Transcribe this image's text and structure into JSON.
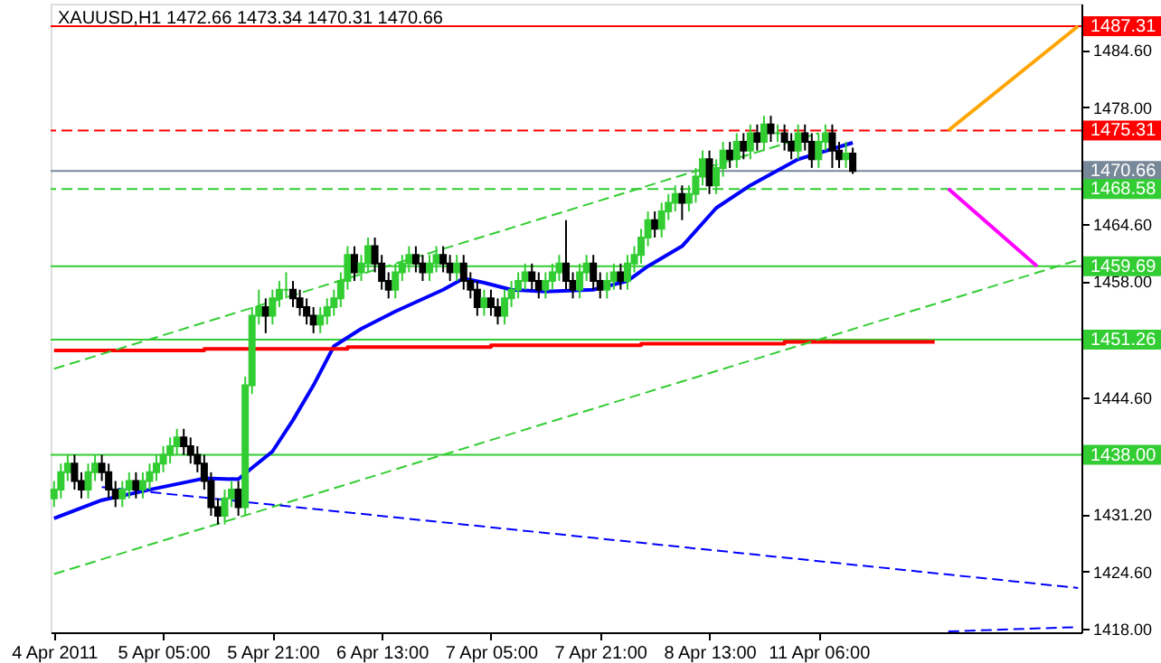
{
  "chart_data": {
    "type": "candlestick",
    "title": "XAUUSD,H1  1472.66 1473.34 1470.31 1470.66",
    "categories": [
      "4 Apr 2011",
      null,
      null,
      null,
      null,
      null,
      null,
      null,
      null,
      null,
      null,
      null,
      null,
      null,
      null,
      null,
      "5 Apr 05:00",
      null,
      null,
      null,
      null,
      null,
      null,
      null,
      null,
      null,
      null,
      null,
      null,
      null,
      null,
      null,
      "5 Apr 21:00",
      null,
      null,
      null,
      null,
      null,
      null,
      null,
      null,
      null,
      null,
      null,
      null,
      null,
      null,
      null,
      "6 Apr 13:00",
      null,
      null,
      null,
      null,
      null,
      null,
      null,
      null,
      null,
      null,
      null,
      null,
      null,
      null,
      null,
      "7 Apr 05:00",
      null,
      null,
      null,
      null,
      null,
      null,
      null,
      null,
      null,
      null,
      null,
      null,
      null,
      null,
      null,
      "7 Apr 21:00",
      null,
      null,
      null,
      null,
      null,
      null,
      null,
      null,
      null,
      null,
      null,
      null,
      null,
      null,
      null,
      "8 Apr 13:00",
      null,
      null,
      null,
      null,
      null,
      null,
      null,
      null,
      null,
      null,
      null,
      null,
      null,
      null,
      null,
      "11 Apr 06:00",
      null,
      null,
      null,
      null,
      null,
      null,
      null,
      null,
      null,
      null,
      null,
      null,
      null,
      null,
      null,
      null,
      null,
      null,
      null,
      null,
      null,
      null,
      null,
      null,
      null,
      null,
      null,
      null,
      null,
      null,
      null,
      null,
      null,
      null,
      null,
      null,
      null,
      null
    ],
    "ohlc": [
      [
        1433,
        1435,
        1432,
        1434
      ],
      [
        1434,
        1437,
        1433,
        1436
      ],
      [
        1436,
        1438,
        1435,
        1437
      ],
      [
        1437,
        1438,
        1434,
        1435
      ],
      [
        1435,
        1436,
        1433,
        1434
      ],
      [
        1434,
        1437,
        1433,
        1436
      ],
      [
        1436,
        1438,
        1435,
        1437
      ],
      [
        1437,
        1438,
        1435,
        1436
      ],
      [
        1436,
        1437,
        1433,
        1434
      ],
      [
        1434,
        1435,
        1432,
        1433
      ],
      [
        1433,
        1435,
        1432,
        1434
      ],
      [
        1434,
        1436,
        1433,
        1435
      ],
      [
        1435,
        1436,
        1433,
        1434
      ],
      [
        1434,
        1436,
        1433,
        1435
      ],
      [
        1435,
        1437,
        1434,
        1436
      ],
      [
        1436,
        1438,
        1435,
        1437
      ],
      [
        1437,
        1439,
        1436,
        1438
      ],
      [
        1438,
        1440,
        1437,
        1439
      ],
      [
        1439,
        1441,
        1438,
        1440
      ],
      [
        1440,
        1441,
        1438,
        1439
      ],
      [
        1439,
        1440,
        1437,
        1438
      ],
      [
        1438,
        1439,
        1436,
        1437
      ],
      [
        1437,
        1438,
        1434,
        1435
      ],
      [
        1435,
        1436,
        1431,
        1432
      ],
      [
        1432,
        1433,
        1430,
        1431
      ],
      [
        1431,
        1434,
        1430,
        1433
      ],
      [
        1433,
        1435,
        1432,
        1434
      ],
      [
        1434,
        1435,
        1431,
        1432
      ],
      [
        1432,
        1447,
        1431,
        1446
      ],
      [
        1446,
        1455,
        1445,
        1454
      ],
      [
        1454,
        1457,
        1453,
        1455
      ],
      [
        1455,
        1456,
        1452,
        1454
      ],
      [
        1454,
        1457,
        1453,
        1456
      ],
      [
        1456,
        1458,
        1455,
        1457
      ],
      [
        1457,
        1459,
        1456,
        1457
      ],
      [
        1457,
        1458,
        1455,
        1456
      ],
      [
        1456,
        1457,
        1454,
        1455
      ],
      [
        1455,
        1456,
        1453,
        1454
      ],
      [
        1454,
        1455,
        1452,
        1453
      ],
      [
        1453,
        1455,
        1452,
        1454
      ],
      [
        1454,
        1456,
        1453,
        1455
      ],
      [
        1455,
        1457,
        1454,
        1456
      ],
      [
        1456,
        1459,
        1455,
        1458
      ],
      [
        1458,
        1462,
        1457,
        1461
      ],
      [
        1461,
        1462,
        1458,
        1459
      ],
      [
        1459,
        1461,
        1458,
        1460
      ],
      [
        1460,
        1463,
        1459,
        1462
      ],
      [
        1462,
        1463,
        1459,
        1460
      ],
      [
        1460,
        1461,
        1457,
        1458
      ],
      [
        1458,
        1459,
        1456,
        1457
      ],
      [
        1457,
        1460,
        1456,
        1459
      ],
      [
        1459,
        1461,
        1458,
        1460
      ],
      [
        1460,
        1462,
        1459,
        1461
      ],
      [
        1461,
        1462,
        1459,
        1460
      ],
      [
        1460,
        1461,
        1458,
        1459
      ],
      [
        1459,
        1461,
        1458,
        1460
      ],
      [
        1460,
        1462,
        1459,
        1461
      ],
      [
        1461,
        1462,
        1459,
        1460
      ],
      [
        1460,
        1461,
        1458,
        1459
      ],
      [
        1459,
        1461,
        1458,
        1460
      ],
      [
        1460,
        1461,
        1457,
        1458
      ],
      [
        1458,
        1459,
        1456,
        1457
      ],
      [
        1457,
        1458,
        1454,
        1455
      ],
      [
        1455,
        1457,
        1454,
        1456
      ],
      [
        1456,
        1457,
        1454,
        1455
      ],
      [
        1455,
        1456,
        1453,
        1454
      ],
      [
        1454,
        1457,
        1453,
        1456
      ],
      [
        1456,
        1458,
        1455,
        1457
      ],
      [
        1457,
        1459,
        1456,
        1458
      ],
      [
        1458,
        1460,
        1457,
        1459
      ],
      [
        1459,
        1460,
        1457,
        1458
      ],
      [
        1458,
        1459,
        1456,
        1457
      ],
      [
        1457,
        1459,
        1456,
        1458
      ],
      [
        1458,
        1460,
        1457,
        1459
      ],
      [
        1459,
        1461,
        1458,
        1460
      ],
      [
        1460,
        1465,
        1457,
        1458
      ],
      [
        1458,
        1459,
        1456,
        1457
      ],
      [
        1457,
        1460,
        1456,
        1459
      ],
      [
        1459,
        1461,
        1458,
        1460
      ],
      [
        1460,
        1461,
        1457,
        1458
      ],
      [
        1458,
        1459,
        1456,
        1457
      ],
      [
        1457,
        1459,
        1456,
        1458
      ],
      [
        1458,
        1460,
        1457,
        1459
      ],
      [
        1459,
        1460,
        1457,
        1458
      ],
      [
        1458,
        1461,
        1457,
        1460
      ],
      [
        1460,
        1462,
        1459,
        1461
      ],
      [
        1461,
        1464,
        1460,
        1463
      ],
      [
        1463,
        1466,
        1462,
        1465
      ],
      [
        1465,
        1466,
        1463,
        1464
      ],
      [
        1464,
        1467,
        1463,
        1466
      ],
      [
        1466,
        1468,
        1465,
        1467
      ],
      [
        1467,
        1469,
        1466,
        1468
      ],
      [
        1468,
        1469,
        1465,
        1467
      ],
      [
        1467,
        1469,
        1466,
        1468
      ],
      [
        1468,
        1471,
        1467,
        1470
      ],
      [
        1470,
        1473,
        1469,
        1472
      ],
      [
        1472,
        1473,
        1468,
        1469
      ],
      [
        1469,
        1472,
        1468,
        1471
      ],
      [
        1471,
        1474,
        1470,
        1473
      ],
      [
        1473,
        1474,
        1471,
        1472
      ],
      [
        1472,
        1475,
        1471,
        1474
      ],
      [
        1474,
        1475,
        1472,
        1473
      ],
      [
        1473,
        1476,
        1472,
        1475
      ],
      [
        1475,
        1476,
        1473,
        1474
      ],
      [
        1474,
        1477,
        1473,
        1476
      ],
      [
        1476,
        1477,
        1474,
        1475
      ],
      [
        1475,
        1476,
        1474,
        1475
      ],
      [
        1475,
        1476,
        1473,
        1474
      ],
      [
        1474,
        1475,
        1472,
        1473
      ],
      [
        1473,
        1476,
        1472,
        1475
      ],
      [
        1475,
        1476,
        1473,
        1474
      ],
      [
        1474,
        1475,
        1471,
        1472
      ],
      [
        1472,
        1475,
        1471,
        1474
      ],
      [
        1474,
        1476,
        1473,
        1475
      ],
      [
        1475,
        1476,
        1471,
        1473
      ],
      [
        1473,
        1474,
        1471,
        1472
      ],
      [
        1472,
        1474,
        1471,
        1472.66
      ],
      [
        1472.66,
        1473.34,
        1470.31,
        1470.66
      ],
      null,
      null,
      null,
      null,
      null,
      null,
      null,
      null,
      null,
      null,
      null,
      null,
      null,
      null,
      null,
      null,
      null,
      null,
      null,
      null,
      null,
      null,
      null,
      null,
      null,
      null,
      null,
      null,
      null,
      null,
      null,
      null,
      null
    ],
    "colors": [
      "#32cd32",
      "#32cd32",
      "#32cd32",
      "#000000",
      "#000000",
      "#32cd32",
      "#32cd32",
      "#000000",
      "#000000",
      "#000000",
      "#32cd32",
      "#32cd32",
      "#000000",
      "#32cd32",
      "#32cd32",
      "#32cd32",
      "#32cd32",
      "#32cd32",
      "#32cd32",
      "#000000",
      "#000000",
      "#000000",
      "#000000",
      "#000000",
      "#000000",
      "#32cd32",
      "#32cd32",
      "#000000",
      "#32cd32",
      "#32cd32",
      "#32cd32",
      "#000000",
      "#32cd32",
      "#32cd32",
      "#32cd32",
      "#000000",
      "#000000",
      "#000000",
      "#000000",
      "#32cd32",
      "#32cd32",
      "#32cd32",
      "#32cd32",
      "#32cd32",
      "#000000",
      "#32cd32",
      "#32cd32",
      "#000000",
      "#000000",
      "#000000",
      "#32cd32",
      "#32cd32",
      "#32cd32",
      "#000000",
      "#000000",
      "#32cd32",
      "#32cd32",
      "#000000",
      "#000000",
      "#32cd32",
      "#000000",
      "#000000",
      "#000000",
      "#32cd32",
      "#000000",
      "#000000",
      "#32cd32",
      "#32cd32",
      "#32cd32",
      "#32cd32",
      "#000000",
      "#000000",
      "#32cd32",
      "#32cd32",
      "#32cd32",
      "#000000",
      "#000000",
      "#32cd32",
      "#32cd32",
      "#000000",
      "#000000",
      "#32cd32",
      "#32cd32",
      "#000000",
      "#32cd32",
      "#32cd32",
      "#32cd32",
      "#32cd32",
      "#000000",
      "#32cd32",
      "#32cd32",
      "#32cd32",
      "#000000",
      "#32cd32",
      "#32cd32",
      "#32cd32",
      "#000000",
      "#32cd32",
      "#32cd32",
      "#000000",
      "#32cd32",
      "#000000",
      "#32cd32",
      "#000000",
      "#32cd32",
      "#000000",
      "#32cd32",
      "#000000",
      "#000000",
      "#32cd32",
      "#000000",
      "#000000",
      "#32cd32",
      "#32cd32",
      "#000000",
      "#000000",
      "#32cd32",
      "#000000",
      null,
      null,
      null,
      null,
      null,
      null,
      null,
      null,
      null,
      null,
      null,
      null,
      null,
      null,
      null,
      null,
      null,
      null,
      null,
      null,
      null,
      null,
      null,
      null,
      null,
      null,
      null,
      null,
      null,
      null,
      null,
      null,
      null
    ],
    "series": [
      {
        "type": "line",
        "color": "#0000ff",
        "values": [
          1430.7,
          null,
          null,
          null,
          null,
          null,
          null,
          1432.8,
          null,
          null,
          null,
          null,
          null,
          null,
          1434,
          null,
          null,
          null,
          null,
          null,
          null,
          null,
          1435.3,
          null,
          null,
          null,
          null,
          1435.2,
          null,
          1436.5,
          null,
          null,
          1438.4,
          null,
          null,
          1442,
          null,
          null,
          1446,
          null,
          null,
          1450.5,
          null,
          null,
          null,
          1452.5,
          null,
          null,
          null,
          null,
          1454.5,
          null,
          null,
          null,
          null,
          null,
          null,
          1457,
          null,
          null,
          1458.3,
          null,
          null,
          1457.8,
          null,
          null,
          null,
          1457,
          null,
          null,
          null,
          null,
          1456.8,
          null,
          null,
          null,
          null,
          null,
          null,
          1457,
          null,
          null,
          null,
          null,
          1458,
          null,
          null,
          1459.7,
          null,
          null,
          null,
          null,
          1462,
          null,
          null,
          null,
          null,
          1466.4,
          null,
          null,
          null,
          null,
          1469,
          null,
          null,
          null,
          null,
          null,
          null,
          1472,
          null,
          null,
          null,
          null,
          null,
          null,
          null,
          1473.9,
          null,
          null,
          null,
          null,
          null,
          null,
          null,
          null,
          null,
          null,
          null,
          null,
          null,
          null,
          null,
          null,
          null,
          null,
          null,
          null,
          null,
          null,
          null,
          null,
          null,
          null,
          null,
          null,
          null,
          null,
          null,
          null,
          null
        ]
      },
      {
        "type": "step",
        "color": "#ff0000",
        "values": [
          1450.0,
          null,
          null,
          null,
          null,
          null,
          null,
          null,
          null,
          null,
          null,
          null,
          null,
          null,
          null,
          null,
          null,
          null,
          null,
          null,
          null,
          null,
          1450.2,
          null,
          null,
          null,
          null,
          null,
          null,
          null,
          null,
          null,
          null,
          null,
          null,
          null,
          null,
          null,
          null,
          null,
          null,
          null,
          null,
          1450.4,
          null,
          null,
          null,
          null,
          null,
          null,
          null,
          null,
          null,
          null,
          null,
          null,
          null,
          null,
          null,
          null,
          null,
          null,
          null,
          null,
          1450.6,
          null,
          null,
          null,
          null,
          null,
          null,
          null,
          null,
          null,
          null,
          null,
          null,
          null,
          null,
          null,
          null,
          null,
          null,
          null,
          null,
          null,
          1450.8,
          null,
          null,
          null,
          null,
          null,
          null,
          null,
          null,
          null,
          null,
          null,
          null,
          null,
          null,
          null,
          null,
          null,
          null,
          null,
          null,
          1451.0,
          null,
          null,
          null,
          null,
          null,
          null,
          null,
          null,
          null,
          null,
          null,
          null,
          null,
          null,
          null,
          null,
          null,
          null,
          null,
          null,
          null,
          1451.0,
          null,
          null,
          null,
          null,
          null,
          null,
          null,
          null,
          null,
          null,
          null,
          null,
          null,
          null,
          null,
          null,
          null,
          null,
          null,
          null,
          null
        ]
      },
      {
        "type": "line",
        "color": "#32cd32",
        "line_style": "dashed",
        "values": [
          1447.9,
          null,
          null,
          null,
          null,
          null,
          null,
          null,
          null,
          null,
          null,
          null,
          null,
          null,
          null,
          null,
          null,
          null,
          null,
          null,
          null,
          null,
          null,
          null,
          null,
          null,
          null,
          null,
          null,
          null,
          null,
          null,
          null,
          null,
          null,
          null,
          null,
          null,
          null,
          null,
          null,
          null,
          null,
          null,
          null,
          null,
          null,
          null,
          null,
          null,
          null,
          null,
          null,
          null,
          null,
          null,
          null,
          null,
          null,
          null,
          null,
          null,
          null,
          null,
          null,
          null,
          null,
          null,
          null,
          null,
          null,
          null,
          null,
          null,
          null,
          null,
          null,
          null,
          null,
          null,
          null,
          null,
          null,
          null,
          null,
          null,
          null,
          null,
          null,
          null,
          null,
          null,
          null,
          null,
          null,
          null,
          null,
          null,
          null,
          null,
          null,
          null,
          null,
          null,
          null,
          null,
          null,
          null,
          null,
          null,
          null,
          null,
          1475.0,
          null,
          null,
          null,
          null,
          null,
          null,
          null,
          null,
          null,
          null,
          null,
          null,
          null,
          null,
          null,
          null,
          null,
          null,
          null,
          null,
          null,
          null,
          null,
          null,
          null,
          null,
          null,
          null,
          null,
          null,
          null,
          null,
          null,
          null,
          null,
          null,
          null,
          null
        ]
      },
      {
        "type": "line",
        "color": "#32cd32",
        "line_style": "dashed",
        "values": [
          1424.3,
          null,
          null,
          null,
          null,
          null,
          null,
          null,
          null,
          null,
          null,
          null,
          null,
          null,
          null,
          null,
          null,
          null,
          null,
          null,
          null,
          null,
          null,
          null,
          null,
          null,
          null,
          null,
          null,
          null,
          null,
          null,
          null,
          null,
          null,
          null,
          null,
          null,
          null,
          null,
          null,
          null,
          null,
          null,
          null,
          null,
          null,
          null,
          null,
          null,
          null,
          null,
          null,
          null,
          null,
          null,
          null,
          null,
          null,
          null,
          null,
          null,
          null,
          null,
          null,
          null,
          null,
          null,
          null,
          null,
          null,
          null,
          null,
          null,
          null,
          null,
          null,
          null,
          null,
          null,
          null,
          null,
          null,
          null,
          null,
          null,
          null,
          null,
          null,
          null,
          null,
          null,
          null,
          null,
          null,
          null,
          null,
          null,
          null,
          null,
          null,
          null,
          null,
          null,
          null,
          null,
          null,
          null,
          null,
          null,
          null,
          null,
          null,
          null,
          null,
          null,
          null,
          null,
          null,
          null,
          null,
          null,
          null,
          null,
          null,
          null,
          null,
          null,
          null,
          null,
          null,
          null,
          null,
          null,
          null,
          null,
          null,
          null,
          null,
          null,
          null,
          null,
          null,
          null,
          null,
          null,
          null,
          null,
          null,
          null,
          1460.4
        ]
      },
      {
        "type": "line",
        "color": "#0000ff",
        "line_style": "dashed",
        "values": [
          null,
          null,
          null,
          null,
          null,
          null,
          null,
          1434.3,
          null,
          null,
          null,
          null,
          null,
          null,
          null,
          null,
          null,
          null,
          null,
          null,
          null,
          null,
          null,
          null,
          null,
          null,
          null,
          null,
          null,
          null,
          null,
          null,
          null,
          null,
          null,
          null,
          null,
          null,
          null,
          null,
          null,
          null,
          null,
          null,
          null,
          null,
          null,
          null,
          null,
          null,
          null,
          null,
          null,
          null,
          null,
          null,
          null,
          null,
          null,
          null,
          null,
          null,
          null,
          null,
          null,
          null,
          null,
          null,
          null,
          null,
          null,
          null,
          null,
          null,
          null,
          null,
          null,
          null,
          null,
          null,
          null,
          null,
          null,
          null,
          null,
          null,
          null,
          null,
          null,
          null,
          null,
          null,
          null,
          null,
          null,
          null,
          null,
          null,
          null,
          null,
          null,
          null,
          null,
          null,
          null,
          null,
          null,
          null,
          null,
          null,
          null,
          null,
          null,
          null,
          null,
          null,
          null,
          null,
          null,
          null,
          null,
          null,
          null,
          null,
          null,
          null,
          null,
          null,
          null,
          null,
          null,
          null,
          null,
          null,
          null,
          null,
          null,
          null,
          null,
          null,
          null,
          null,
          null,
          null,
          null,
          null,
          null,
          null,
          null,
          null,
          1422.7
        ]
      },
      {
        "type": "line",
        "color": "#0000ff",
        "line_style": "dashed",
        "values": [
          null,
          null,
          null,
          null,
          null,
          null,
          null,
          null,
          null,
          null,
          null,
          null,
          null,
          null,
          null,
          null,
          null,
          null,
          null,
          null,
          null,
          null,
          null,
          null,
          null,
          null,
          null,
          null,
          null,
          null,
          null,
          null,
          null,
          null,
          null,
          null,
          null,
          null,
          null,
          null,
          null,
          null,
          null,
          null,
          null,
          null,
          null,
          null,
          null,
          null,
          null,
          null,
          null,
          null,
          null,
          null,
          null,
          null,
          null,
          null,
          null,
          null,
          null,
          null,
          null,
          null,
          null,
          null,
          null,
          null,
          null,
          null,
          null,
          null,
          null,
          null,
          null,
          null,
          null,
          null,
          null,
          null,
          null,
          null,
          null,
          null,
          null,
          null,
          null,
          null,
          null,
          null,
          null,
          null,
          null,
          null,
          null,
          null,
          null,
          null,
          null,
          null,
          null,
          null,
          null,
          null,
          null,
          null,
          null,
          null,
          null,
          null,
          null,
          null,
          null,
          null,
          null,
          null,
          null,
          null,
          null,
          null,
          null,
          null,
          null,
          null,
          null,
          null,
          null,
          null,
          null,
          1417.7,
          null,
          null,
          null,
          null,
          null,
          null,
          null,
          null,
          null,
          null,
          null,
          null,
          null,
          null,
          null,
          null,
          null,
          null,
          1418.2
        ]
      },
      {
        "type": "line",
        "color": "#ffa500",
        "values": [
          null,
          null,
          null,
          null,
          null,
          null,
          null,
          null,
          null,
          null,
          null,
          null,
          null,
          null,
          null,
          null,
          null,
          null,
          null,
          null,
          null,
          null,
          null,
          null,
          null,
          null,
          null,
          null,
          null,
          null,
          null,
          null,
          null,
          null,
          null,
          null,
          null,
          null,
          null,
          null,
          null,
          null,
          null,
          null,
          null,
          null,
          null,
          null,
          null,
          null,
          null,
          null,
          null,
          null,
          null,
          null,
          null,
          null,
          null,
          null,
          null,
          null,
          null,
          null,
          null,
          null,
          null,
          null,
          null,
          null,
          null,
          null,
          null,
          null,
          null,
          null,
          null,
          null,
          null,
          null,
          null,
          null,
          null,
          null,
          null,
          null,
          null,
          null,
          null,
          null,
          null,
          null,
          null,
          null,
          null,
          null,
          null,
          null,
          null,
          null,
          null,
          null,
          null,
          null,
          null,
          null,
          null,
          null,
          null,
          null,
          null,
          null,
          null,
          null,
          null,
          null,
          null,
          null,
          null,
          null,
          null,
          null,
          null,
          null,
          null,
          null,
          null,
          null,
          null,
          null,
          null,
          1475.3,
          null,
          null,
          null,
          null,
          null,
          null,
          null,
          null,
          null,
          null,
          null,
          null,
          null,
          null,
          null,
          null,
          null,
          null,
          1487.3
        ]
      },
      {
        "type": "line",
        "color": "#ff00ff",
        "values": [
          null,
          null,
          null,
          null,
          null,
          null,
          null,
          null,
          null,
          null,
          null,
          null,
          null,
          null,
          null,
          null,
          null,
          null,
          null,
          null,
          null,
          null,
          null,
          null,
          null,
          null,
          null,
          null,
          null,
          null,
          null,
          null,
          null,
          null,
          null,
          null,
          null,
          null,
          null,
          null,
          null,
          null,
          null,
          null,
          null,
          null,
          null,
          null,
          null,
          null,
          null,
          null,
          null,
          null,
          null,
          null,
          null,
          null,
          null,
          null,
          null,
          null,
          null,
          null,
          null,
          null,
          null,
          null,
          null,
          null,
          null,
          null,
          null,
          null,
          null,
          null,
          null,
          null,
          null,
          null,
          null,
          null,
          null,
          null,
          null,
          null,
          null,
          null,
          null,
          null,
          null,
          null,
          null,
          null,
          null,
          null,
          null,
          null,
          null,
          null,
          null,
          null,
          null,
          null,
          null,
          null,
          null,
          null,
          null,
          null,
          null,
          null,
          null,
          null,
          null,
          null,
          null,
          null,
          null,
          null,
          null,
          null,
          null,
          null,
          null,
          null,
          null,
          null,
          null,
          null,
          null,
          1468.6,
          null,
          null,
          null,
          null,
          null,
          null,
          null,
          null,
          null,
          null,
          null,
          null,
          1459.7,
          null,
          null,
          null,
          null,
          null,
          null
        ]
      }
    ],
    "ref_lines": [
      {
        "axis": "y",
        "value": 1487.31,
        "label": "1487.31",
        "color": "#ff0000",
        "line_style": "solid"
      },
      {
        "axis": "y",
        "value": 1475.31,
        "label": "1475.31",
        "color": "#ff0000",
        "line_style": "dashed"
      },
      {
        "axis": "y",
        "value": 1470.66,
        "label": "1470.66",
        "color": "#778899",
        "line_style": "solid"
      },
      {
        "axis": "y",
        "value": 1468.58,
        "label": "1468.58",
        "color": "#32cd32",
        "line_style": "dashed"
      },
      {
        "axis": "y",
        "value": 1459.69,
        "label": "1459.69",
        "color": "#32cd32",
        "line_style": "solid"
      },
      {
        "axis": "y",
        "value": 1451.26,
        "label": "1451.26",
        "color": "#32cd32",
        "line_style": "solid"
      },
      {
        "axis": "y",
        "value": 1438.0,
        "label": "1438.00",
        "color": "#32cd32",
        "line_style": "solid"
      }
    ],
    "ylim": [
      1417.6,
      1489.9
    ],
    "yticks": [
      {
        "value": 1418,
        "label": "1418.00"
      },
      {
        "value": 1424.6,
        "label": "1424.60"
      },
      {
        "value": 1431.2,
        "label": "1431.20"
      },
      {
        "value": 1444.6,
        "label": "1444.60"
      },
      {
        "value": 1458,
        "label": "1458.00"
      },
      {
        "value": 1464.6,
        "label": "1464.60"
      },
      {
        "value": 1478,
        "label": "1478.00"
      },
      {
        "value": 1484.6,
        "label": "1484.60"
      }
    ],
    "grid": false,
    "marker": "none"
  }
}
